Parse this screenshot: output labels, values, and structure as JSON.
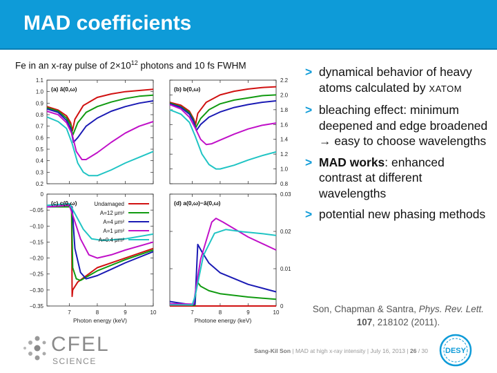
{
  "slide": {
    "title": "MAD coefficients",
    "caption_main": "Fe in an x-ray pulse of 2×10",
    "caption_exp": "12",
    "caption_rest": " photons and 10 fs FWHM"
  },
  "bullets": [
    {
      "mark": ">",
      "parts": [
        {
          "text": "dynamical behavior of heavy atoms calculated by "
        },
        {
          "text": "XATOM",
          "style": "smallcaps"
        }
      ]
    },
    {
      "mark": ">",
      "parts": [
        {
          "text": "bleaching effect: minimum deepened and edge broadened → easy to choose wavelengths"
        }
      ]
    },
    {
      "mark": ">",
      "parts": [
        {
          "text": "MAD works",
          "style": "bold"
        },
        {
          "text": ": enhanced contrast at different wavelengths"
        }
      ]
    },
    {
      "mark": ">",
      "parts": [
        {
          "text": "potential new phasing methods"
        }
      ]
    }
  ],
  "reference": {
    "authors": "Son, Chapman & Santra, ",
    "journal": "Phys. Rev. Lett.",
    "space": " ",
    "volume": "107",
    "rest": ", 218102 (2011)."
  },
  "footer": {
    "speaker": "Sang-Kil Son",
    "sep": "  |  ",
    "talk": "MAD at high x-ray intensity",
    "date": "July 16, 2013",
    "page": "26",
    "page_total": " / 30"
  },
  "logos": {
    "left_word": "CFEL",
    "left_sub": "SCIENCE",
    "right_word": "DESY"
  },
  "colors": {
    "accent": "#0e9bd8",
    "series": {
      "Undamaged": "#d01010",
      "A=12 μm²": "#109a10",
      "A=4 μm²": "#1a1ab4",
      "A=1 μm²": "#c010c8",
      "A=0.4 μm²": "#20c4c4"
    }
  },
  "chart_data": [
    {
      "type": "line",
      "panel_label": "(a) ā(0,ω)",
      "xlim": [
        6.2,
        10
      ],
      "ylim": [
        0.2,
        1.1
      ],
      "x_ticks": [
        7,
        8,
        9,
        10
      ],
      "y_ticks": [
        "0.2",
        "0.3",
        "0.4",
        "0.5",
        "0.6",
        "0.7",
        "0.8",
        "0.9",
        "1.0",
        "1.1"
      ],
      "y_tick_side": "left",
      "series": [
        {
          "name": "Undamaged",
          "values": [
            [
              6.2,
              0.87
            ],
            [
              6.6,
              0.84
            ],
            [
              6.9,
              0.79
            ],
            [
              7.05,
              0.73
            ],
            [
              7.11,
              0.66
            ],
            [
              7.2,
              0.76
            ],
            [
              7.5,
              0.88
            ],
            [
              8.0,
              0.95
            ],
            [
              8.5,
              0.98
            ],
            [
              9.0,
              1.0
            ],
            [
              9.5,
              1.01
            ],
            [
              10.0,
              1.02
            ]
          ]
        },
        {
          "name": "A=12 μm²",
          "values": [
            [
              6.2,
              0.86
            ],
            [
              6.6,
              0.83
            ],
            [
              6.9,
              0.77
            ],
            [
              7.05,
              0.71
            ],
            [
              7.12,
              0.62
            ],
            [
              7.3,
              0.73
            ],
            [
              7.6,
              0.82
            ],
            [
              8.0,
              0.87
            ],
            [
              8.5,
              0.91
            ],
            [
              9.0,
              0.94
            ],
            [
              9.5,
              0.96
            ],
            [
              10.0,
              0.97
            ]
          ]
        },
        {
          "name": "A=4 μm²",
          "values": [
            [
              6.2,
              0.85
            ],
            [
              6.6,
              0.82
            ],
            [
              6.9,
              0.75
            ],
            [
              7.05,
              0.68
            ],
            [
              7.15,
              0.56
            ],
            [
              7.3,
              0.6
            ],
            [
              7.6,
              0.7
            ],
            [
              8.0,
              0.77
            ],
            [
              8.5,
              0.83
            ],
            [
              9.0,
              0.87
            ],
            [
              9.5,
              0.9
            ],
            [
              10.0,
              0.92
            ]
          ]
        },
        {
          "name": "A=1 μm²",
          "values": [
            [
              6.2,
              0.83
            ],
            [
              6.6,
              0.8
            ],
            [
              6.9,
              0.73
            ],
            [
              7.1,
              0.63
            ],
            [
              7.25,
              0.48
            ],
            [
              7.45,
              0.41
            ],
            [
              7.6,
              0.41
            ],
            [
              8.0,
              0.47
            ],
            [
              8.5,
              0.56
            ],
            [
              9.0,
              0.64
            ],
            [
              9.5,
              0.7
            ],
            [
              10.0,
              0.74
            ]
          ]
        },
        {
          "name": "A=0.4 μm²",
          "values": [
            [
              6.2,
              0.78
            ],
            [
              6.6,
              0.74
            ],
            [
              6.9,
              0.68
            ],
            [
              7.1,
              0.55
            ],
            [
              7.3,
              0.38
            ],
            [
              7.5,
              0.3
            ],
            [
              7.7,
              0.27
            ],
            [
              8.0,
              0.27
            ],
            [
              8.5,
              0.32
            ],
            [
              9.0,
              0.38
            ],
            [
              9.5,
              0.43
            ],
            [
              10.0,
              0.48
            ]
          ]
        }
      ]
    },
    {
      "type": "line",
      "panel_label": "(b) b(0,ω)",
      "xlim": [
        6.2,
        10
      ],
      "ylim": [
        0.8,
        2.2
      ],
      "x_ticks": [
        7,
        8,
        9,
        10
      ],
      "y_ticks": [
        "0.8",
        "1.0",
        "1.2",
        "1.4",
        "1.6",
        "1.8",
        "2.0",
        "2.2"
      ],
      "y_tick_side": "right",
      "series": [
        {
          "name": "Undamaged",
          "values": [
            [
              6.2,
              1.9
            ],
            [
              6.6,
              1.86
            ],
            [
              6.9,
              1.78
            ],
            [
              7.05,
              1.68
            ],
            [
              7.12,
              1.6
            ],
            [
              7.2,
              1.75
            ],
            [
              7.5,
              1.9
            ],
            [
              8.0,
              2.0
            ],
            [
              8.5,
              2.05
            ],
            [
              9.0,
              2.08
            ],
            [
              9.5,
              2.1
            ],
            [
              10.0,
              2.11
            ]
          ]
        },
        {
          "name": "A=12 μm²",
          "values": [
            [
              6.2,
              1.89
            ],
            [
              6.6,
              1.84
            ],
            [
              6.9,
              1.76
            ],
            [
              7.05,
              1.66
            ],
            [
              7.13,
              1.56
            ],
            [
              7.3,
              1.68
            ],
            [
              7.6,
              1.8
            ],
            [
              8.0,
              1.88
            ],
            [
              8.5,
              1.93
            ],
            [
              9.0,
              1.96
            ],
            [
              9.5,
              1.99
            ],
            [
              10.0,
              2.0
            ]
          ]
        },
        {
          "name": "A=4 μm²",
          "values": [
            [
              6.2,
              1.88
            ],
            [
              6.6,
              1.83
            ],
            [
              6.9,
              1.74
            ],
            [
              7.05,
              1.64
            ],
            [
              7.15,
              1.52
            ],
            [
              7.3,
              1.6
            ],
            [
              7.6,
              1.7
            ],
            [
              8.0,
              1.77
            ],
            [
              8.5,
              1.83
            ],
            [
              9.0,
              1.87
            ],
            [
              9.5,
              1.9
            ],
            [
              10.0,
              1.92
            ]
          ]
        },
        {
          "name": "A=1 μm²",
          "values": [
            [
              6.2,
              1.87
            ],
            [
              6.6,
              1.81
            ],
            [
              6.9,
              1.7
            ],
            [
              7.1,
              1.56
            ],
            [
              7.3,
              1.4
            ],
            [
              7.5,
              1.33
            ],
            [
              7.7,
              1.34
            ],
            [
              8.0,
              1.39
            ],
            [
              8.5,
              1.47
            ],
            [
              9.0,
              1.54
            ],
            [
              9.5,
              1.59
            ],
            [
              10.0,
              1.62
            ]
          ]
        },
        {
          "name": "A=0.4 μm²",
          "values": [
            [
              6.2,
              1.8
            ],
            [
              6.6,
              1.74
            ],
            [
              6.9,
              1.63
            ],
            [
              7.1,
              1.45
            ],
            [
              7.35,
              1.2
            ],
            [
              7.6,
              1.06
            ],
            [
              7.85,
              1.0
            ],
            [
              8.0,
              1.0
            ],
            [
              8.5,
              1.05
            ],
            [
              9.0,
              1.12
            ],
            [
              9.5,
              1.18
            ],
            [
              10.0,
              1.23
            ]
          ]
        }
      ]
    },
    {
      "type": "line",
      "panel_label": "(c) c(0,ω)",
      "xlim": [
        6.2,
        10
      ],
      "ylim": [
        -0.35,
        0
      ],
      "x_ticks": [
        7,
        8,
        9,
        10
      ],
      "y_ticks": [
        "−0.35",
        "−0.30",
        "−0.25",
        "−0.20",
        "−0.15",
        "−0.10",
        "−0.05",
        "0"
      ],
      "y_tick_side": "left",
      "xlabel": "Photon energy (keV)",
      "legend": [
        "Undamaged",
        "A=12 μm²",
        "A=4 μm²",
        "A=1 μm²",
        "A=0.4 μm²"
      ],
      "series": [
        {
          "name": "Undamaged",
          "values": [
            [
              6.2,
              -0.04
            ],
            [
              7.0,
              -0.04
            ],
            [
              7.08,
              -0.04
            ],
            [
              7.1,
              -0.32
            ],
            [
              7.12,
              -0.3
            ],
            [
              7.3,
              -0.275
            ],
            [
              8.0,
              -0.23
            ],
            [
              9.0,
              -0.2
            ],
            [
              10.0,
              -0.17
            ]
          ]
        },
        {
          "name": "A=12 μm²",
          "values": [
            [
              6.2,
              -0.04
            ],
            [
              7.0,
              -0.04
            ],
            [
              7.08,
              -0.04
            ],
            [
              7.12,
              -0.23
            ],
            [
              7.25,
              -0.265
            ],
            [
              7.4,
              -0.27
            ],
            [
              8.0,
              -0.24
            ],
            [
              9.0,
              -0.205
            ],
            [
              10.0,
              -0.175
            ]
          ]
        },
        {
          "name": "A=4 μm²",
          "values": [
            [
              6.2,
              -0.04
            ],
            [
              7.0,
              -0.035
            ],
            [
              7.1,
              -0.04
            ],
            [
              7.2,
              -0.17
            ],
            [
              7.4,
              -0.245
            ],
            [
              7.6,
              -0.265
            ],
            [
              8.0,
              -0.255
            ],
            [
              8.5,
              -0.235
            ],
            [
              9.0,
              -0.215
            ],
            [
              10.0,
              -0.18
            ]
          ]
        },
        {
          "name": "A=1 μm²",
          "values": [
            [
              6.2,
              -0.04
            ],
            [
              7.0,
              -0.035
            ],
            [
              7.1,
              -0.06
            ],
            [
              7.4,
              -0.14
            ],
            [
              7.7,
              -0.19
            ],
            [
              8.0,
              -0.2
            ],
            [
              8.5,
              -0.19
            ],
            [
              9.0,
              -0.175
            ],
            [
              10.0,
              -0.15
            ]
          ]
        },
        {
          "name": "A=0.4 μm²",
          "values": [
            [
              6.2,
              -0.035
            ],
            [
              7.0,
              -0.03
            ],
            [
              7.1,
              -0.045
            ],
            [
              7.5,
              -0.11
            ],
            [
              7.8,
              -0.14
            ],
            [
              8.2,
              -0.145
            ],
            [
              9.0,
              -0.14
            ],
            [
              10.0,
              -0.125
            ]
          ]
        }
      ]
    },
    {
      "type": "line",
      "panel_label": "(d) a(0,ω)−ā(0,ω)",
      "xlim": [
        6.2,
        10
      ],
      "ylim": [
        0,
        0.03
      ],
      "x_ticks": [
        7,
        8,
        9,
        10
      ],
      "y_ticks": [
        "0",
        "0.01",
        "0.02",
        "0.03"
      ],
      "y_tick_side": "right",
      "xlabel": "Photone energy (keV)",
      "series": [
        {
          "name": "Undamaged",
          "values": [
            [
              6.2,
              0.0
            ],
            [
              10.0,
              0.0
            ]
          ]
        },
        {
          "name": "A=12 μm²",
          "values": [
            [
              6.2,
              0.0005
            ],
            [
              7.0,
              0.0002
            ],
            [
              7.1,
              0.0002
            ],
            [
              7.15,
              0.0068
            ],
            [
              7.3,
              0.0053
            ],
            [
              7.6,
              0.0041
            ],
            [
              8.0,
              0.0033
            ],
            [
              9.0,
              0.0024
            ],
            [
              10.0,
              0.0018
            ]
          ]
        },
        {
          "name": "A=4 μm²",
          "values": [
            [
              6.2,
              0.0012
            ],
            [
              7.0,
              0.0003
            ],
            [
              7.1,
              0.0005
            ],
            [
              7.2,
              0.0165
            ],
            [
              7.35,
              0.0145
            ],
            [
              7.6,
              0.0115
            ],
            [
              8.0,
              0.0089
            ],
            [
              9.0,
              0.0058
            ],
            [
              10.0,
              0.0038
            ]
          ]
        },
        {
          "name": "A=1 μm²",
          "values": [
            [
              6.2,
              0.0006
            ],
            [
              7.05,
              0.0005
            ],
            [
              7.15,
              0.0055
            ],
            [
              7.3,
              0.0125
            ],
            [
              7.7,
              0.0225
            ],
            [
              7.85,
              0.0235
            ],
            [
              8.1,
              0.0225
            ],
            [
              9.0,
              0.0185
            ],
            [
              10.0,
              0.015
            ]
          ]
        },
        {
          "name": "A=0.4 μm²",
          "values": [
            [
              6.2,
              0.0003
            ],
            [
              7.0,
              0.0003
            ],
            [
              7.1,
              0.0025
            ],
            [
              7.4,
              0.0135
            ],
            [
              7.8,
              0.0195
            ],
            [
              8.2,
              0.0205
            ],
            [
              8.8,
              0.0199
            ],
            [
              9.5,
              0.0194
            ],
            [
              10.0,
              0.0189
            ]
          ]
        }
      ]
    }
  ]
}
